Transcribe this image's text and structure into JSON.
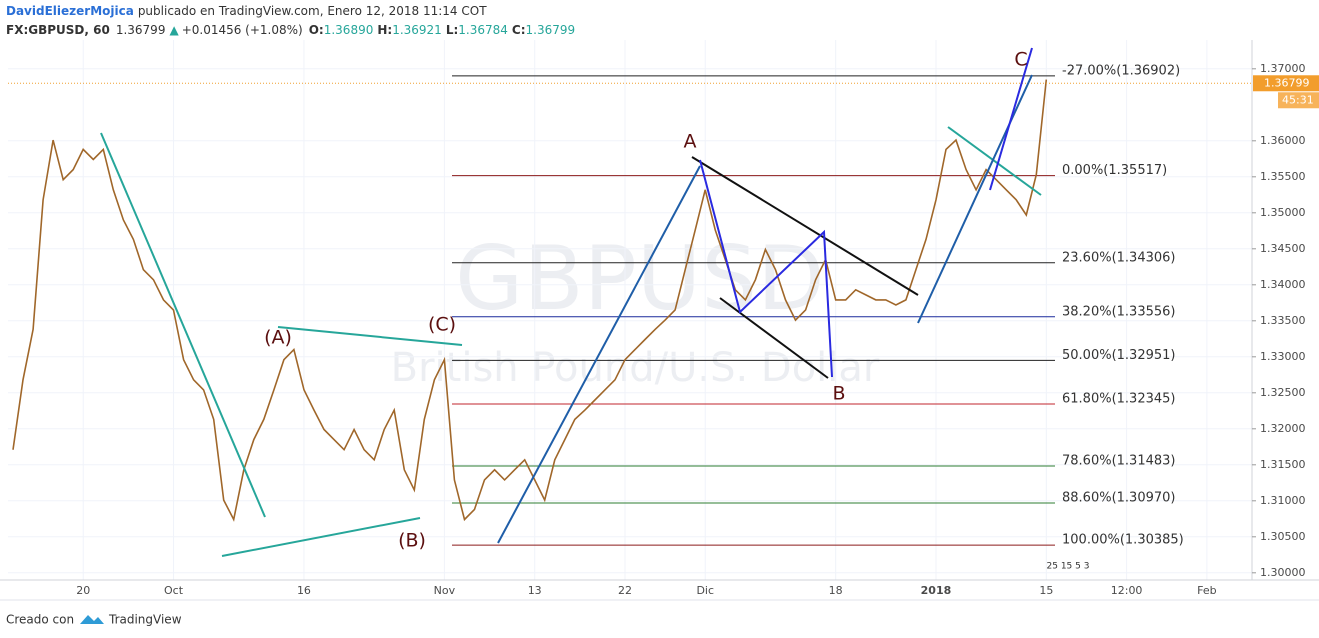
{
  "header": {
    "author": "DavidEliezerMojica",
    "published": "publicado en TradingView.com, Enero 12, 2018 11:14 COT",
    "symbol": "FX:GBPUSD, 60",
    "last": "1.36799",
    "arrow": "▲",
    "change": "+0.01456 (+1.08%)",
    "o_label": "O:",
    "open": "1.36890",
    "h_label": "H:",
    "high": "1.36921",
    "l_label": "L:",
    "low": "1.36784",
    "c_label": "C:",
    "close": "1.36799"
  },
  "watermark": {
    "symbol": "GBPUSD",
    "description": "British Pound/U.S. Dollar"
  },
  "chart_data": {
    "type": "line",
    "categories": [
      null,
      null,
      null,
      null,
      null,
      null,
      null,
      "20",
      null,
      null,
      null,
      null,
      null,
      null,
      null,
      null,
      "Oct",
      null,
      null,
      null,
      null,
      null,
      null,
      null,
      null,
      null,
      null,
      null,
      null,
      "16",
      null,
      null,
      null,
      null,
      null,
      null,
      null,
      null,
      null,
      null,
      null,
      null,
      null,
      "Nov",
      null,
      null,
      null,
      null,
      null,
      null,
      null,
      null,
      "13",
      null,
      null,
      null,
      null,
      null,
      null,
      null,
      null,
      "22",
      null,
      null,
      null,
      null,
      null,
      null,
      null,
      "Dic",
      null,
      null,
      null,
      null,
      null,
      null,
      null,
      null,
      null,
      null,
      null,
      null,
      "18",
      null,
      null,
      null,
      null,
      null,
      null,
      null,
      null,
      null,
      "2018",
      null,
      null,
      null,
      null,
      null,
      null,
      null,
      null,
      null,
      null,
      "15",
      null,
      null,
      null,
      null,
      null,
      null,
      null,
      "12:00",
      null,
      null,
      null,
      null,
      null,
      null,
      null,
      "Feb",
      null,
      null,
      null,
      null
    ],
    "series": [
      {
        "name": "GBPUSD",
        "color": "#a0672a",
        "values": [
          1.3171,
          1.3268,
          1.3338,
          1.3518,
          1.3601,
          1.3546,
          1.356,
          1.3588,
          1.3574,
          1.3588,
          1.3532,
          1.349,
          1.3463,
          1.3421,
          1.3407,
          1.3379,
          1.3365,
          1.3296,
          1.3268,
          1.3254,
          1.3213,
          1.3101,
          1.3074,
          1.3143,
          1.3185,
          1.3213,
          1.3254,
          1.3296,
          1.331,
          1.3254,
          1.3226,
          1.3199,
          1.3185,
          1.3171,
          1.3199,
          1.3171,
          1.3157,
          1.3199,
          1.3226,
          1.3143,
          1.3115,
          1.3213,
          1.3268,
          1.3296,
          1.3129,
          1.3074,
          1.3088,
          1.3129,
          1.3143,
          1.3129,
          1.3143,
          1.3157,
          1.3129,
          1.3101,
          1.3157,
          1.3185,
          1.3213,
          1.3226,
          1.324,
          1.3254,
          1.3268,
          1.3296,
          1.331,
          1.3324,
          1.3338,
          1.3351,
          1.3365,
          1.3421,
          1.3476,
          1.3532,
          1.3476,
          1.3435,
          1.3393,
          1.3379,
          1.3407,
          1.3449,
          1.3421,
          1.3379,
          1.3351,
          1.3365,
          1.3407,
          1.3435,
          1.3379,
          1.3379,
          1.3393,
          1.3386,
          1.3379,
          1.3379,
          1.3372,
          1.3379,
          1.3421,
          1.3463,
          1.3518,
          1.3588,
          1.3601,
          1.356,
          1.3532,
          1.356,
          1.3546,
          1.3532,
          1.3518,
          1.3497,
          1.3553,
          1.3685,
          null,
          null,
          null,
          null,
          null,
          null,
          null,
          null,
          null,
          null,
          null,
          null,
          null,
          null,
          null,
          null,
          null,
          null,
          null,
          null
        ]
      }
    ],
    "ylim": [
      1.299,
      1.374
    ],
    "yticks": [
      {
        "value": 1.3,
        "label": "1.30000"
      },
      {
        "value": 1.305,
        "label": "1.30500"
      },
      {
        "value": 1.31,
        "label": "1.31000"
      },
      {
        "value": 1.315,
        "label": "1.31500"
      },
      {
        "value": 1.32,
        "label": "1.32000"
      },
      {
        "value": 1.325,
        "label": "1.32500"
      },
      {
        "value": 1.33,
        "label": "1.33000"
      },
      {
        "value": 1.335,
        "label": "1.33500"
      },
      {
        "value": 1.34,
        "label": "1.34000"
      },
      {
        "value": 1.345,
        "label": "1.34500"
      },
      {
        "value": 1.35,
        "label": "1.35000"
      },
      {
        "value": 1.355,
        "label": "1.35500"
      },
      {
        "value": 1.36,
        "label": "1.36000"
      },
      {
        "value": 1.37,
        "label": "1.37000"
      }
    ],
    "grid": true,
    "fib_levels": [
      {
        "value": 1.36902,
        "label": "-27.00%(1.36902)",
        "color": "#222222"
      },
      {
        "value": 1.35517,
        "label": "0.00%(1.35517)",
        "color": "#8b1a1a"
      },
      {
        "value": 1.34306,
        "label": "23.60%(1.34306)",
        "color": "#222222"
      },
      {
        "value": 1.33556,
        "label": "38.20%(1.33556)",
        "color": "#1a2a9c"
      },
      {
        "value": 1.32951,
        "label": "50.00%(1.32951)",
        "color": "#222222"
      },
      {
        "value": 1.32345,
        "label": "61.80%(1.32345)",
        "color": "#c0262d"
      },
      {
        "value": 1.31483,
        "label": "78.60%(1.31483)",
        "color": "#2e7d32"
      },
      {
        "value": 1.3097,
        "label": "88.60%(1.30970)",
        "color": "#2e7d32"
      },
      {
        "value": 1.30385,
        "label": "100.00%(1.30385)",
        "color": "#8b1a1a"
      }
    ],
    "price_label": {
      "value": 1.36799,
      "label": "1.36799"
    },
    "countdown": "45:31",
    "events": "25 15 5 3",
    "annotations": [
      "A",
      "B",
      "C",
      "(A)",
      "(B)",
      "(C)"
    ]
  },
  "footer": {
    "created": "Creado con",
    "brand": "TradingView"
  }
}
